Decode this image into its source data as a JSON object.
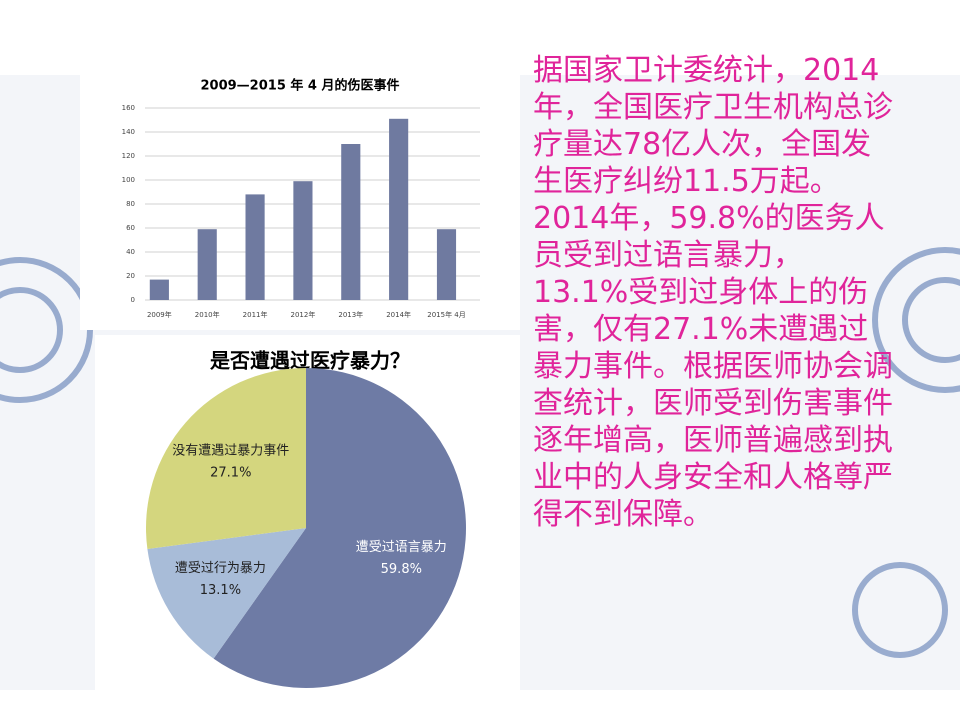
{
  "chart_data": [
    {
      "type": "bar",
      "title": "2009—2015 年 4 月的伤医事件",
      "categories": [
        "2009年",
        "2010年",
        "2011年",
        "2012年",
        "2013年",
        "2014年",
        "2015年 4月"
      ],
      "values": [
        17,
        59,
        88,
        99,
        130,
        151,
        59
      ],
      "color": "#6f7aa0",
      "ylim": [
        0,
        160
      ],
      "yticks": [
        0,
        20,
        40,
        60,
        80,
        100,
        120,
        140,
        160
      ],
      "grid": true
    },
    {
      "type": "pie",
      "title": "是否遭遇过医疗暴力？",
      "categories": [
        "遭受过语言暴力",
        "遭受过行为暴力",
        "没有遭遇过暴力事件"
      ],
      "values": [
        59.8,
        13.1,
        27.1
      ],
      "value_labels": [
        "59.8%",
        "13.1%",
        "27.1%"
      ],
      "colors": [
        "#6e7ba5",
        "#a8bcd8",
        "#d4d67e"
      ]
    }
  ],
  "text": "据国家卫计委统计，2014年，全国医疗卫生机构总诊疗量达78亿人次，全国发生医疗纠纷11.5万起。2014年，59.8%的医务人员受到过语言暴力，13.1%受到过身体上的伤害，仅有27.1%未遭遇过暴力事件。根据医师协会调查统计，医师受到伤害事件逐年增高，医师普遍感到执业中的人身安全和人格尊严得不到保障。"
}
